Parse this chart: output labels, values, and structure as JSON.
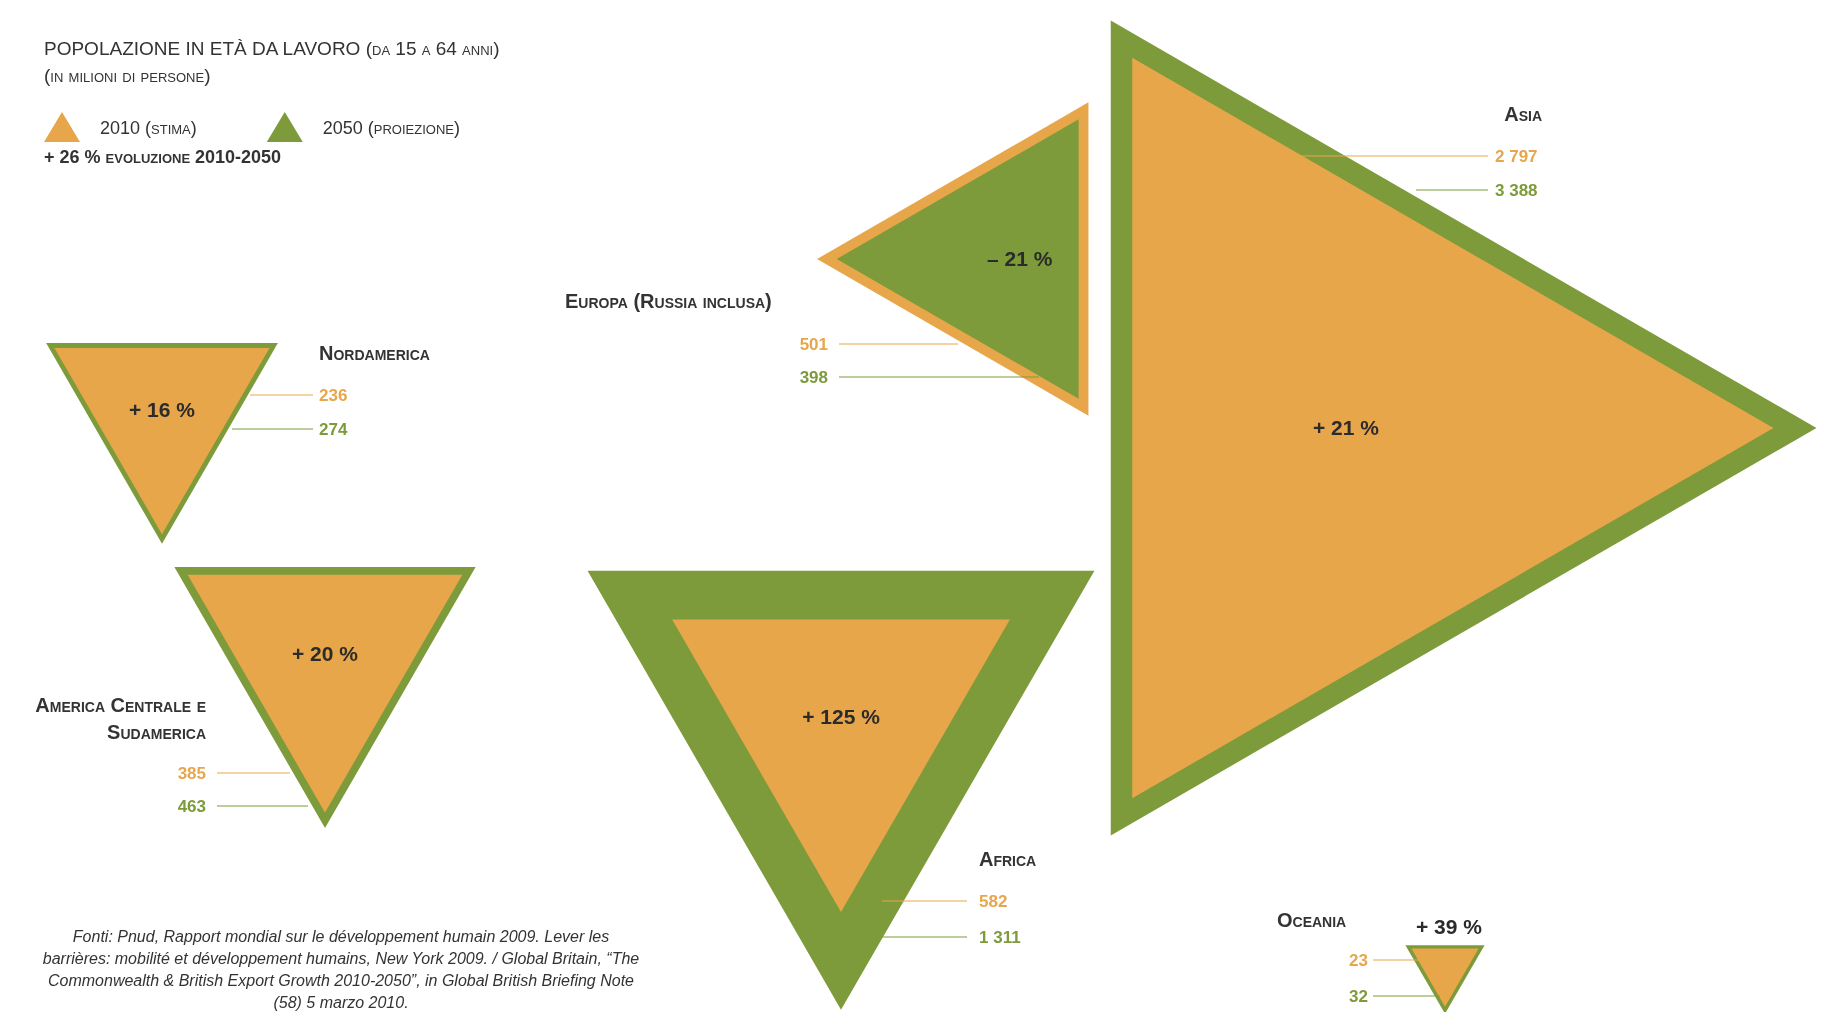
{
  "chart_data": {
    "type": "other",
    "title": "POPOLAZIONE IN ETÀ DA LAVORO (da 15 a 64 anni)",
    "subtitle": "(in milioni di persone)",
    "legend": "top left",
    "categories": [
      "Nordamerica",
      "America Centrale e Sudamerica",
      "Europa (Russia inclusa)",
      "Africa",
      "Asia",
      "Oceania"
    ],
    "series": [
      {
        "name": "2010 (stima)",
        "color": "#e8a64b",
        "values": [
          236,
          385,
          501,
          582,
          2797,
          23
        ]
      },
      {
        "name": "2050 (proiezione)",
        "color": "#7d9b3a",
        "values": [
          274,
          463,
          398,
          1311,
          3388,
          32
        ]
      }
    ],
    "data_labels": true,
    "annotations": [
      {
        "text": "+ 16 %",
        "x": "Nordamerica"
      },
      {
        "text": "+ 20 %",
        "x": "America Centrale e Sudamerica"
      },
      {
        "text": "– 21 %",
        "x": "Europa (Russia inclusa)"
      },
      {
        "text": "+ 125 %",
        "x": "Africa"
      },
      {
        "text": "+ 21 %",
        "x": "Asia"
      },
      {
        "text": "+ 39 %",
        "x": "Oceania"
      },
      "+ 26 %  evoluzione 2010-2050",
      "Fonti: Pnud, Rapport mondial sur le développement humain 2009. Lever les barrières: mobilité et développement humains, New York 2009. / Global Britain, “The Commonwealth & British Export Growth 2010-2050”, in Global British Briefing Note (58) 5 marzo 2010."
    ]
  }
}
